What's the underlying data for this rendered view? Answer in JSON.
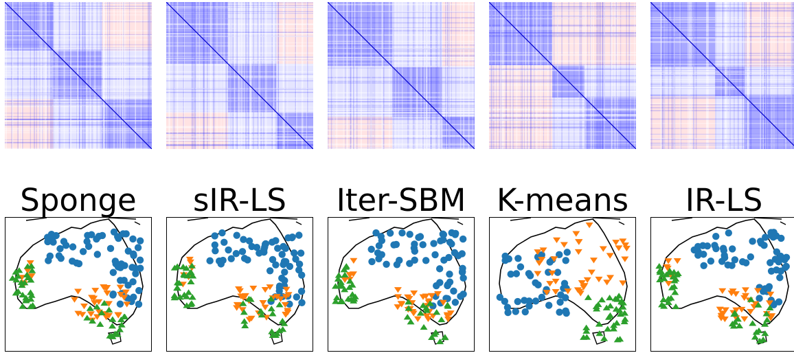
{
  "panels": [
    {
      "title": "Sponge",
      "matrix_blocks": [
        0.33,
        0.33,
        0.34
      ],
      "mismatch": false
    },
    {
      "title": "sIR-LS",
      "matrix_blocks": [
        0.42,
        0.33,
        0.25
      ],
      "mismatch": false
    },
    {
      "title": "Iter-SBM",
      "matrix_blocks": [
        0.44,
        0.34,
        0.22
      ],
      "mismatch": false
    },
    {
      "title": "K-means",
      "matrix_blocks": [
        0.43,
        0.22,
        0.35
      ],
      "mismatch": true
    },
    {
      "title": "IR-LS",
      "matrix_blocks": [
        0.44,
        0.2,
        0.36
      ],
      "mismatch": false
    }
  ],
  "colors": {
    "positive": "#2b2bff",
    "negative": "#ff6b6b",
    "cluster_blue": "#1f77b4",
    "cluster_orange": "#ff7f0e",
    "cluster_green": "#2ca02c",
    "coast": "#000000"
  }
}
